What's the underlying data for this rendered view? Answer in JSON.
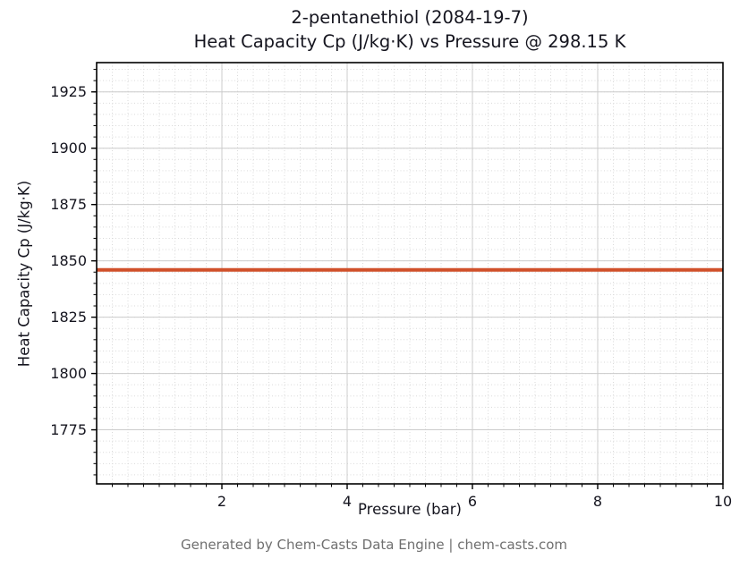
{
  "header": {
    "title_line1": "2-pentanethiol (2084-19-7)",
    "title_line2": "Heat Capacity Cp (J/kg·K) vs Pressure @ 298.15 K"
  },
  "footer": {
    "text": "Generated by Chem-Casts Data Engine | chem-casts.com"
  },
  "chart_data": {
    "type": "line",
    "title": "2-pentanethiol (2084-19-7)\nHeat Capacity Cp (J/kg·K) vs Pressure @ 298.15 K",
    "xlabel": "Pressure (bar)",
    "ylabel": "Heat Capacity Cp (J/kg·K)",
    "xlim": [
      0,
      10
    ],
    "ylim": [
      1751,
      1938
    ],
    "xticks": [
      2,
      4,
      6,
      8,
      10
    ],
    "yticks": [
      1775,
      1800,
      1825,
      1850,
      1875,
      1900,
      1925
    ],
    "x_minor_step": 0.25,
    "y_minor_step": 5,
    "grid": "both",
    "legend": "none",
    "line_color": "#d0502a",
    "constant_value": 1846,
    "series": [
      {
        "name": "Heat Capacity Cp",
        "color": "#d0502a",
        "x": [
          0,
          10
        ],
        "y": [
          1846,
          1846
        ]
      }
    ]
  }
}
